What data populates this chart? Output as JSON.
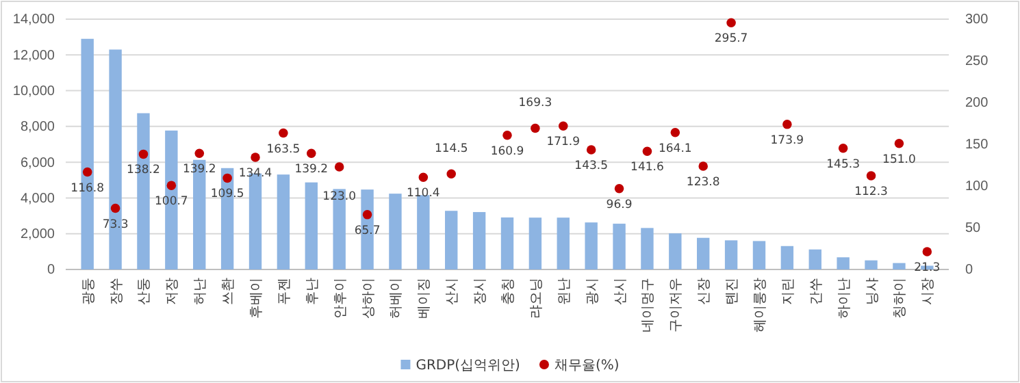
{
  "chart_data": {
    "type": "bar",
    "categories": [
      "광둥",
      "장쑤",
      "산둥",
      "저장",
      "허난",
      "쓰촨",
      "후베이",
      "푸젠",
      "후난",
      "안후이",
      "상하이",
      "허베이",
      "베이징",
      "산시",
      "장시",
      "충칭",
      "랴오닝",
      "윈난",
      "광시",
      "산시",
      "네이멍구",
      "구이저우",
      "신장",
      "톈진",
      "헤이룽장",
      "지린",
      "간쑤",
      "하이난",
      "닝샤",
      "칭하이",
      "시장"
    ],
    "series": [
      {
        "name": "GRDP(십억위안)",
        "type": "bar",
        "color": "#8db4e2",
        "values": [
          12900,
          12300,
          8740,
          7770,
          6130,
          5670,
          5370,
          5310,
          4870,
          4500,
          4470,
          4240,
          4160,
          3280,
          3210,
          2910,
          2900,
          2900,
          2630,
          2560,
          2320,
          2020,
          1770,
          1630,
          1590,
          1310,
          1120,
          680,
          510,
          360,
          210
        ]
      },
      {
        "name": "채무율(%)",
        "type": "scatter",
        "axis": "y2",
        "color": "#c00000",
        "marker": "circle",
        "values": [
          116.8,
          73.3,
          138.2,
          100.7,
          139.2,
          109.5,
          134.4,
          163.5,
          139.2,
          123.0,
          65.7,
          null,
          110.4,
          114.5,
          null,
          160.9,
          169.3,
          171.9,
          143.5,
          96.9,
          141.6,
          164.1,
          123.8,
          295.7,
          null,
          173.9,
          null,
          145.3,
          112.3,
          151.0,
          21.3
        ],
        "value_labels": [
          "116.8",
          "73.3",
          "138.2",
          "100.7",
          "139.2",
          "109.5",
          "134.4",
          "163.5",
          "139.2",
          "123.0",
          "65.7",
          null,
          "110.4",
          "114.5",
          null,
          "160.9",
          "169.3",
          "171.9",
          "143.5",
          "96.9",
          "141.6",
          "164.1",
          "123.8",
          "295.7",
          null,
          "173.9",
          null,
          "145.3",
          "112.3",
          "151.0",
          "21.3"
        ]
      }
    ],
    "ylim": [
      0,
      14000
    ],
    "yticks": [
      0,
      {
        "value": 2000,
        "label": "2,000"
      },
      {
        "value": 4000,
        "label": "4,000"
      },
      {
        "value": 6000,
        "label": "6,000"
      },
      {
        "value": 8000,
        "label": "8,000"
      },
      {
        "value": 10000,
        "label": "10,000"
      },
      {
        "value": 12000,
        "label": "12,000"
      },
      {
        "value": 14000,
        "label": "14,000"
      }
    ],
    "y2lim": [
      0,
      300
    ],
    "y2ticks": [
      0,
      50,
      100,
      150,
      200,
      250,
      300
    ],
    "grid": "y",
    "legend": "bottom"
  }
}
